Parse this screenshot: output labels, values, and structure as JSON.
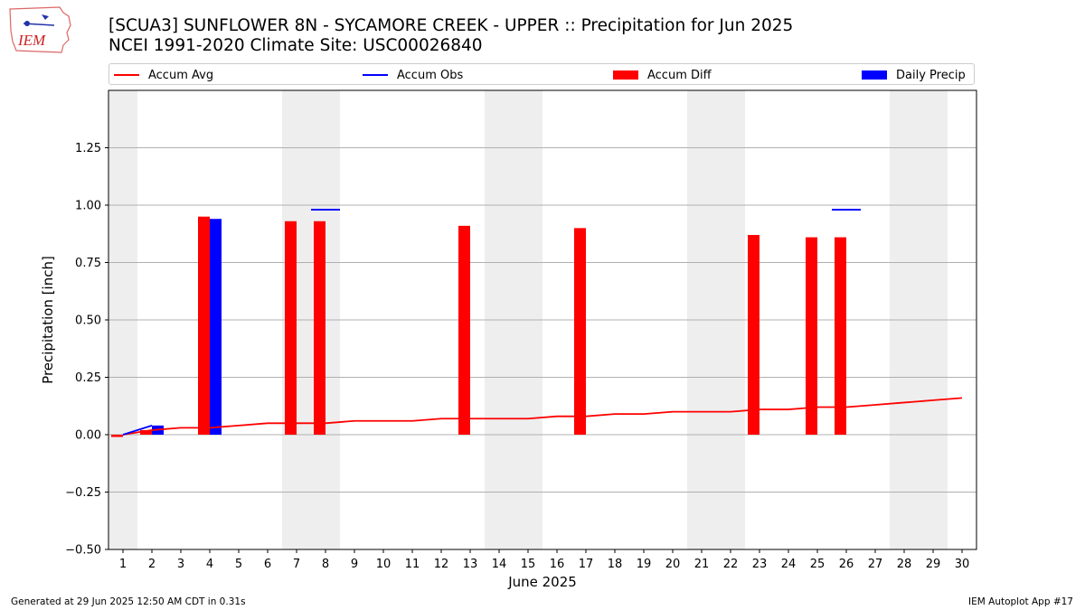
{
  "header": {
    "title_line1": "[SCUA3] SUNFLOWER 8N - SYCAMORE CREEK - UPPER :: Precipitation for Jun 2025",
    "title_line2": "NCEI 1991-2020 Climate Site: USC00026840",
    "logo_text": "IEM"
  },
  "legend": {
    "accum_avg": "Accum Avg",
    "accum_obs": "Accum Obs",
    "accum_diff": "Accum Diff",
    "daily_precip": "Daily Precip"
  },
  "colors": {
    "avg": "#ff0000",
    "obs": "#0000ff",
    "diff": "#ff0000",
    "daily": "#0000ff",
    "weekend_band": "#eeeeee",
    "grid": "#b0b0b0"
  },
  "footer": {
    "generated": "Generated at 29 Jun 2025 12:50 AM CDT in 0.31s",
    "app": "IEM Autoplot App #17"
  },
  "chart_data": {
    "type": "bar",
    "title": "[SCUA3] SUNFLOWER 8N - SYCAMORE CREEK - UPPER :: Precipitation for Jun 2025",
    "xlabel": "June 2025",
    "ylabel": "Precipitation [inch]",
    "xlim": [
      0.5,
      30.5
    ],
    "ylim": [
      -0.5,
      1.5
    ],
    "x_ticks": [
      1,
      2,
      3,
      4,
      5,
      6,
      7,
      8,
      9,
      10,
      11,
      12,
      13,
      14,
      15,
      16,
      17,
      18,
      19,
      20,
      21,
      22,
      23,
      24,
      25,
      26,
      27,
      28,
      29,
      30
    ],
    "y_ticks": [
      -0.5,
      -0.25,
      0.0,
      0.25,
      0.5,
      0.75,
      1.0,
      1.25
    ],
    "y_tick_labels": [
      "−0.50",
      "−0.25",
      "0.00",
      "0.25",
      "0.50",
      "0.75",
      "1.00",
      "1.25"
    ],
    "weekend_bands": [
      [
        0.5,
        1.5
      ],
      [
        6.5,
        8.5
      ],
      [
        13.5,
        15.5
      ],
      [
        20.5,
        22.5
      ],
      [
        27.5,
        29.5
      ]
    ],
    "grid": "horizontal",
    "legend_position": "top",
    "series": [
      {
        "name": "Accum Avg",
        "type": "line",
        "x": [
          1,
          2,
          3,
          4,
          5,
          6,
          7,
          8,
          9,
          10,
          11,
          12,
          13,
          14,
          15,
          16,
          17,
          18,
          19,
          20,
          21,
          22,
          23,
          24,
          25,
          26,
          27,
          28,
          29,
          30
        ],
        "values": [
          0.0,
          0.02,
          0.03,
          0.03,
          0.04,
          0.05,
          0.05,
          0.05,
          0.06,
          0.06,
          0.06,
          0.07,
          0.07,
          0.07,
          0.07,
          0.08,
          0.08,
          0.09,
          0.09,
          0.1,
          0.1,
          0.1,
          0.11,
          0.11,
          0.12,
          0.12,
          0.13,
          0.14,
          0.15,
          0.16
        ]
      },
      {
        "name": "Accum Obs",
        "type": "line",
        "x": [
          1,
          2
        ],
        "values": [
          0.0,
          0.04
        ]
      },
      {
        "name": "Accum Obs",
        "type": "segment",
        "x": [
          7.5,
          8.5
        ],
        "values": [
          0.98,
          0.98
        ]
      },
      {
        "name": "Accum Obs",
        "type": "segment",
        "x": [
          25.5,
          26.5
        ],
        "values": [
          0.98,
          0.98
        ]
      },
      {
        "name": "Accum Diff",
        "type": "bar",
        "x": [
          1,
          2,
          4,
          7,
          8,
          13,
          17,
          23,
          25,
          26
        ],
        "values": [
          -0.01,
          0.02,
          0.95,
          0.93,
          0.93,
          0.91,
          0.9,
          0.87,
          0.86,
          0.86
        ]
      },
      {
        "name": "Daily Precip",
        "type": "bar",
        "x": [
          2,
          4
        ],
        "values": [
          0.04,
          0.94
        ]
      }
    ]
  }
}
